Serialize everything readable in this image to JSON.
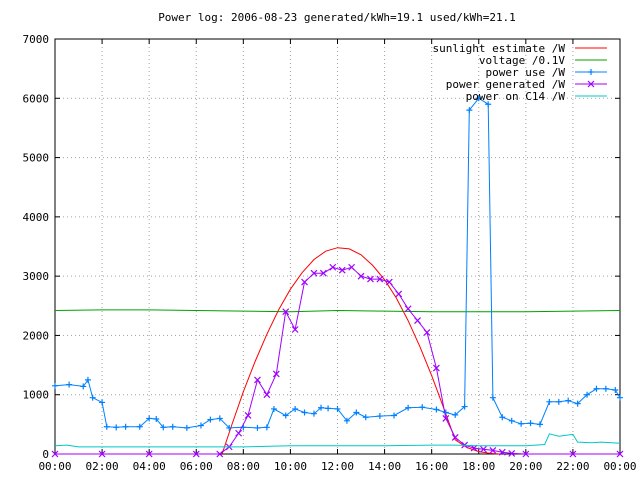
{
  "chart_data": {
    "type": "line",
    "title": "Power log: 2006-08-23 generated/kWh=19.1 used/kWh=21.1",
    "xlabel": "",
    "ylabel": "",
    "x_unit": "hour",
    "xlim": [
      0,
      24
    ],
    "ylim": [
      0,
      7000
    ],
    "x_ticks": [
      {
        "value": 0,
        "label": "00:00"
      },
      {
        "value": 2,
        "label": "02:00"
      },
      {
        "value": 4,
        "label": "04:00"
      },
      {
        "value": 6,
        "label": "06:00"
      },
      {
        "value": 8,
        "label": "08:00"
      },
      {
        "value": 10,
        "label": "10:00"
      },
      {
        "value": 12,
        "label": "12:00"
      },
      {
        "value": 14,
        "label": "14:00"
      },
      {
        "value": 16,
        "label": "16:00"
      },
      {
        "value": 18,
        "label": "18:00"
      },
      {
        "value": 20,
        "label": "20:00"
      },
      {
        "value": 22,
        "label": "22:00"
      },
      {
        "value": 24,
        "label": "00:00"
      }
    ],
    "y_ticks": [
      {
        "value": 0,
        "label": "0"
      },
      {
        "value": 1000,
        "label": "1000"
      },
      {
        "value": 2000,
        "label": "2000"
      },
      {
        "value": 3000,
        "label": "3000"
      },
      {
        "value": 4000,
        "label": "4000"
      },
      {
        "value": 5000,
        "label": "5000"
      },
      {
        "value": 6000,
        "label": "6000"
      },
      {
        "value": 7000,
        "label": "7000"
      }
    ],
    "grid": true,
    "legend_position": "top-right",
    "series": [
      {
        "name": "sunlight estimate /W",
        "color": "#ff0000",
        "style": "line",
        "x": [
          7.1,
          7.5,
          8,
          8.5,
          9,
          9.5,
          10,
          10.5,
          11,
          11.5,
          12,
          12.5,
          13,
          13.5,
          14,
          14.5,
          15,
          15.5,
          16,
          16.5,
          17,
          17.5,
          18,
          18.5,
          18.9
        ],
        "y": [
          0,
          480,
          1050,
          1560,
          2020,
          2430,
          2780,
          3060,
          3280,
          3420,
          3480,
          3460,
          3360,
          3180,
          2940,
          2630,
          2250,
          1810,
          1320,
          790,
          240,
          110,
          40,
          10,
          0
        ]
      },
      {
        "name": "voltage /0.1V",
        "color": "#00a000",
        "style": "line",
        "x": [
          0,
          2,
          4,
          6,
          8,
          10,
          12,
          14,
          16,
          18,
          20,
          22,
          24
        ],
        "y": [
          2420,
          2430,
          2430,
          2420,
          2410,
          2400,
          2420,
          2410,
          2400,
          2400,
          2400,
          2410,
          2420
        ]
      },
      {
        "name": "power use /W",
        "color": "#0080ff",
        "style": "linespoints-plus",
        "x": [
          0,
          0.6,
          1.2,
          1.4,
          1.6,
          2.0,
          2.2,
          2.6,
          3.0,
          3.6,
          4.0,
          4.3,
          4.6,
          5.0,
          5.6,
          6.2,
          6.6,
          7.0,
          7.4,
          8.0,
          8.6,
          9.0,
          9.3,
          9.8,
          10.2,
          10.6,
          11.0,
          11.3,
          11.6,
          12.0,
          12.4,
          12.8,
          13.2,
          13.8,
          14.4,
          15.0,
          15.6,
          16.2,
          16.6,
          17.0,
          17.4,
          17.6,
          18.0,
          18.4,
          18.6,
          19.0,
          19.4,
          19.8,
          20.2,
          20.6,
          21.0,
          21.4,
          21.8,
          22.2,
          22.6,
          23.0,
          23.4,
          23.8,
          24.0
        ],
        "y": [
          1150,
          1170,
          1140,
          1250,
          950,
          870,
          460,
          450,
          460,
          460,
          600,
          590,
          450,
          460,
          440,
          480,
          580,
          600,
          440,
          450,
          440,
          450,
          760,
          650,
          760,
          700,
          680,
          780,
          770,
          760,
          560,
          700,
          620,
          640,
          650,
          780,
          790,
          750,
          700,
          660,
          800,
          5800,
          6000,
          5900,
          950,
          620,
          560,
          510,
          520,
          500,
          880,
          880,
          900,
          850,
          1000,
          1100,
          1100,
          1080,
          950
        ]
      },
      {
        "name": "power generated /W",
        "color": "#a000ff",
        "style": "linespoints-x",
        "x": [
          0,
          2,
          4,
          6,
          7.0,
          7.4,
          7.8,
          8.2,
          8.6,
          9.0,
          9.4,
          9.8,
          10.2,
          10.6,
          11.0,
          11.4,
          11.8,
          12.2,
          12.6,
          13.0,
          13.4,
          13.8,
          14.2,
          14.6,
          15.0,
          15.4,
          15.8,
          16.2,
          16.6,
          17.0,
          17.4,
          17.8,
          18.2,
          18.6,
          19.0,
          19.4,
          20,
          22,
          24
        ],
        "y": [
          0,
          0,
          0,
          0,
          0,
          120,
          350,
          650,
          1250,
          1000,
          1350,
          2400,
          2100,
          2900,
          3050,
          3050,
          3150,
          3100,
          3150,
          3000,
          2950,
          2950,
          2900,
          2700,
          2450,
          2250,
          2050,
          1450,
          600,
          280,
          150,
          100,
          80,
          60,
          30,
          10,
          0,
          0,
          0
        ]
      },
      {
        "name": "power on C14 /W",
        "color": "#00c8c8",
        "style": "line",
        "x": [
          0,
          0.5,
          1.0,
          2.0,
          4.0,
          6.0,
          8.0,
          10.0,
          12.0,
          14.0,
          16.0,
          17.0,
          18.0,
          19.0,
          20.0,
          20.8,
          21.0,
          21.4,
          22.0,
          22.2,
          22.8,
          23.2,
          24.0
        ],
        "y": [
          140,
          150,
          120,
          120,
          120,
          120,
          120,
          140,
          140,
          140,
          150,
          150,
          140,
          140,
          140,
          160,
          340,
          300,
          330,
          200,
          190,
          200,
          180
        ]
      }
    ]
  }
}
